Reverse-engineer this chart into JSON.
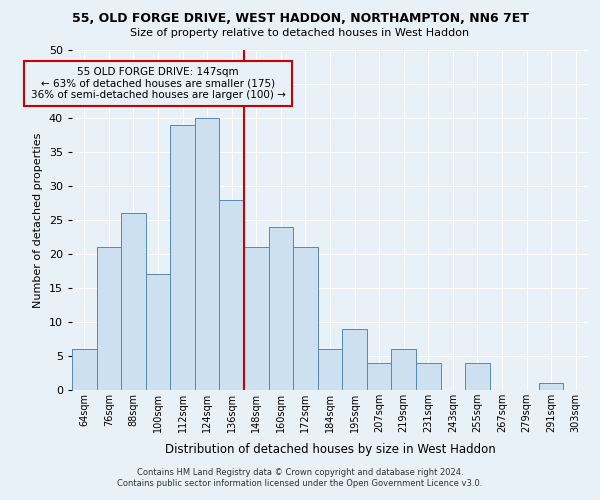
{
  "title1": "55, OLD FORGE DRIVE, WEST HADDON, NORTHAMPTON, NN6 7ET",
  "title2": "Size of property relative to detached houses in West Haddon",
  "xlabel": "Distribution of detached houses by size in West Haddon",
  "ylabel": "Number of detached properties",
  "footer1": "Contains HM Land Registry data © Crown copyright and database right 2024.",
  "footer2": "Contains public sector information licensed under the Open Government Licence v3.0.",
  "annotation_line1": "55 OLD FORGE DRIVE: 147sqm",
  "annotation_line2": "← 63% of detached houses are smaller (175)",
  "annotation_line3": "36% of semi-detached houses are larger (100) →",
  "categories": [
    "64sqm",
    "76sqm",
    "88sqm",
    "100sqm",
    "112sqm",
    "124sqm",
    "136sqm",
    "148sqm",
    "160sqm",
    "172sqm",
    "184sqm",
    "195sqm",
    "207sqm",
    "219sqm",
    "231sqm",
    "243sqm",
    "255sqm",
    "267sqm",
    "279sqm",
    "291sqm",
    "303sqm"
  ],
  "values": [
    6,
    21,
    26,
    17,
    39,
    40,
    28,
    21,
    24,
    21,
    6,
    9,
    4,
    6,
    4,
    0,
    4,
    0,
    0,
    1,
    0
  ],
  "bar_color": "#cce0f0",
  "bar_edge_color": "#5588bb",
  "vline_color": "#cc0000",
  "bg_color": "#e8f0f8",
  "grid_color": "#ffffff",
  "ylim": [
    0,
    50
  ],
  "yticks": [
    0,
    5,
    10,
    15,
    20,
    25,
    30,
    35,
    40,
    45,
    50
  ]
}
